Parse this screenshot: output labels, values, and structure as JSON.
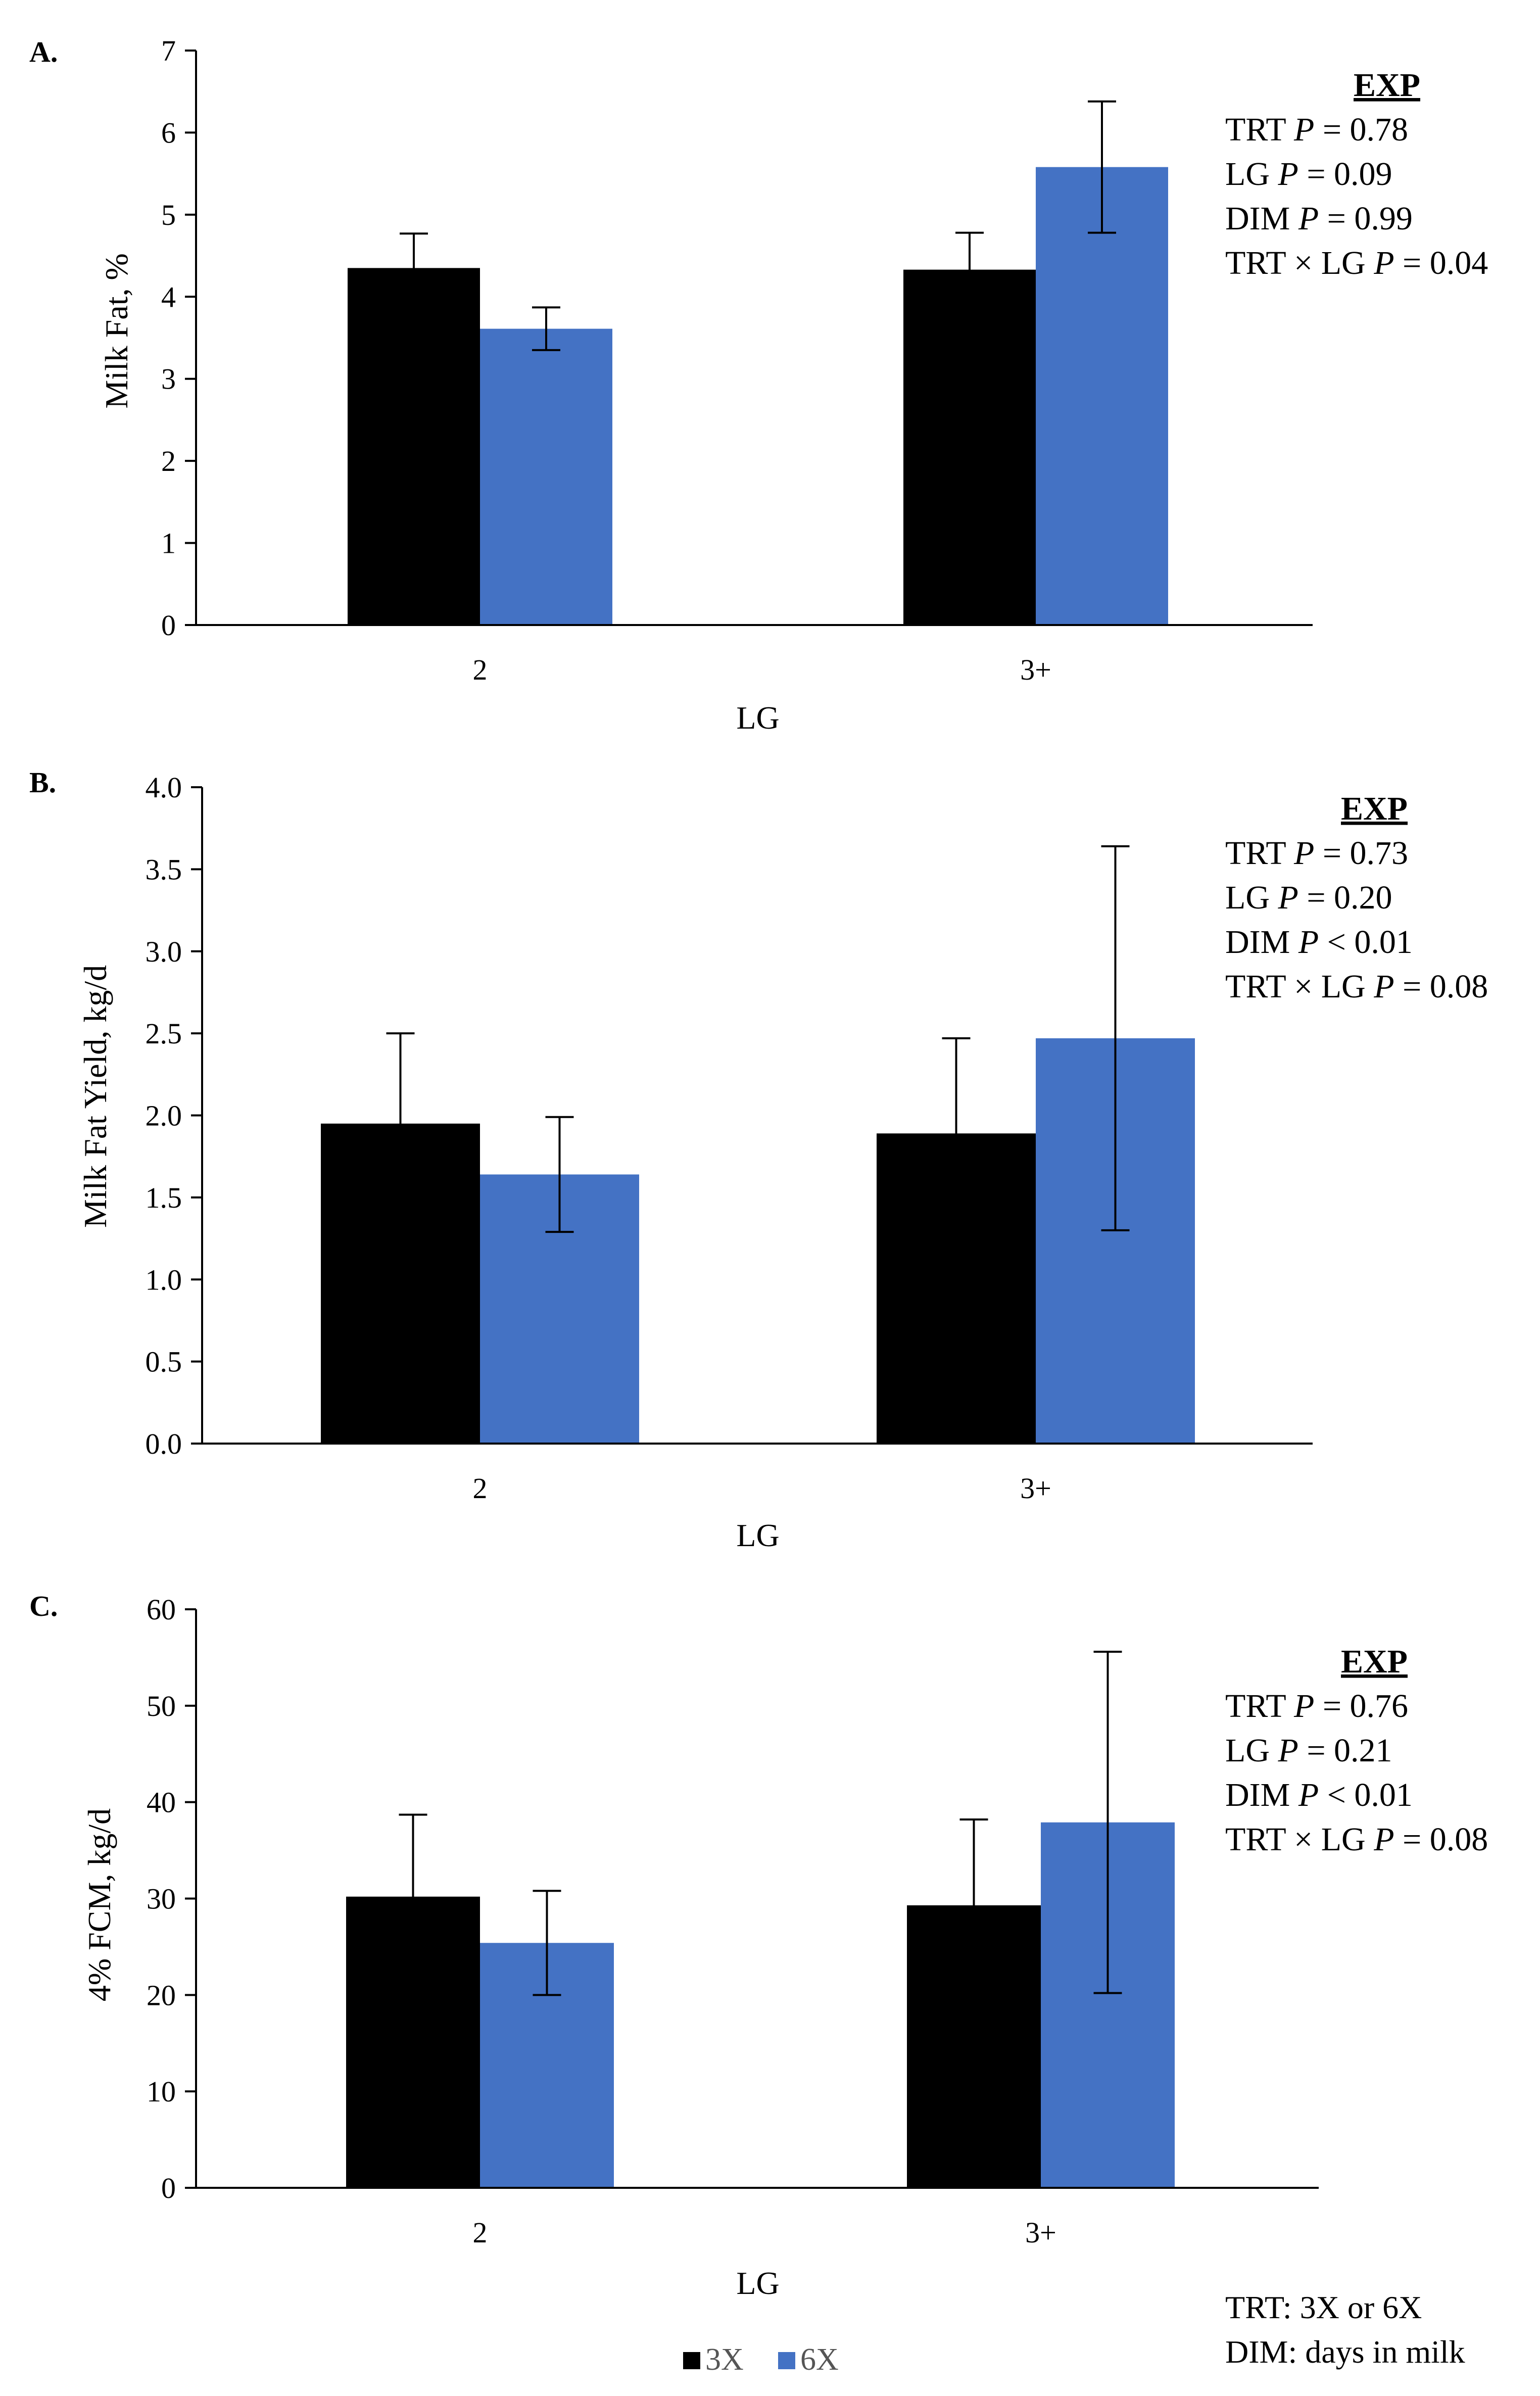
{
  "chart_data": [
    {
      "type": "bar",
      "panel_label": "A.",
      "categories": [
        "2",
        "3+"
      ],
      "xlabel": "LG",
      "ylabel": "Milk Fat, %",
      "ylim": [
        0,
        7
      ],
      "yticks": [
        "0",
        "1",
        "2",
        "3",
        "4",
        "5",
        "6",
        "7"
      ],
      "series": [
        {
          "name": "3X",
          "values": [
            4.35,
            4.33
          ],
          "errors": [
            0.42,
            0.45
          ]
        },
        {
          "name": "6X",
          "values": [
            3.61,
            5.58
          ],
          "errors": [
            0.26,
            0.8
          ]
        }
      ],
      "stats": {
        "heading": "EXP",
        "lines": [
          {
            "label": "TRT ",
            "p": "P",
            "value": " = 0.78"
          },
          {
            "label": "LG ",
            "p": "P",
            "value": " = 0.09"
          },
          {
            "label": "DIM ",
            "p": "P",
            "value": " = 0.99"
          },
          {
            "label": "TRT × LG ",
            "p": "P",
            "value": " = 0.04"
          }
        ]
      }
    },
    {
      "type": "bar",
      "panel_label": "B.",
      "categories": [
        "2",
        "3+"
      ],
      "xlabel": "LG",
      "ylabel": "Milk Fat Yield, kg/d",
      "ylim": [
        0,
        4
      ],
      "yticks": [
        "0.0",
        "0.5",
        "1.0",
        "1.5",
        "2.0",
        "2.5",
        "3.0",
        "3.5",
        "4.0"
      ],
      "series": [
        {
          "name": "3X",
          "values": [
            1.95,
            1.89
          ],
          "errors": [
            0.55,
            0.58
          ]
        },
        {
          "name": "6X",
          "values": [
            1.64,
            2.47
          ],
          "errors": [
            0.35,
            1.17
          ]
        }
      ],
      "stats": {
        "heading": "EXP",
        "lines": [
          {
            "label": "TRT ",
            "p": "P",
            "value": " = 0.73"
          },
          {
            "label": "LG ",
            "p": "P",
            "value": " = 0.20"
          },
          {
            "label": "DIM ",
            "p": "P",
            "value": " < 0.01"
          },
          {
            "label": "TRT × LG ",
            "p": "P",
            "value": " = 0.08"
          }
        ]
      }
    },
    {
      "type": "bar",
      "panel_label": "C.",
      "categories": [
        "2",
        "3+"
      ],
      "xlabel": "LG",
      "ylabel": "4% FCM,  kg/d",
      "ylim": [
        0,
        60
      ],
      "yticks": [
        "0",
        "10",
        "20",
        "30",
        "40",
        "50",
        "60"
      ],
      "series": [
        {
          "name": "3X",
          "values": [
            30.2,
            29.3
          ],
          "errors": [
            8.5,
            8.9
          ]
        },
        {
          "name": "6X",
          "values": [
            25.4,
            37.9
          ],
          "errors": [
            5.4,
            17.7
          ]
        }
      ],
      "stats": {
        "heading": "EXP",
        "lines": [
          {
            "label": "TRT ",
            "p": "P",
            "value": " = 0.76"
          },
          {
            "label": "LG ",
            "p": "P",
            "value": " = 0.21"
          },
          {
            "label": "DIM ",
            "p": "P",
            "value": " < 0.01"
          },
          {
            "label": "TRT × LG ",
            "p": "P",
            "value": " = 0.08"
          }
        ]
      }
    }
  ],
  "colors": {
    "3X": "#000000",
    "6X": "#4472C4"
  },
  "legend": [
    {
      "label": "3X",
      "color": "#000000"
    },
    {
      "label": "6X",
      "color": "#4472C4"
    }
  ],
  "notes": [
    "TRT: 3X or 6X",
    "DIM: days in milk"
  ]
}
